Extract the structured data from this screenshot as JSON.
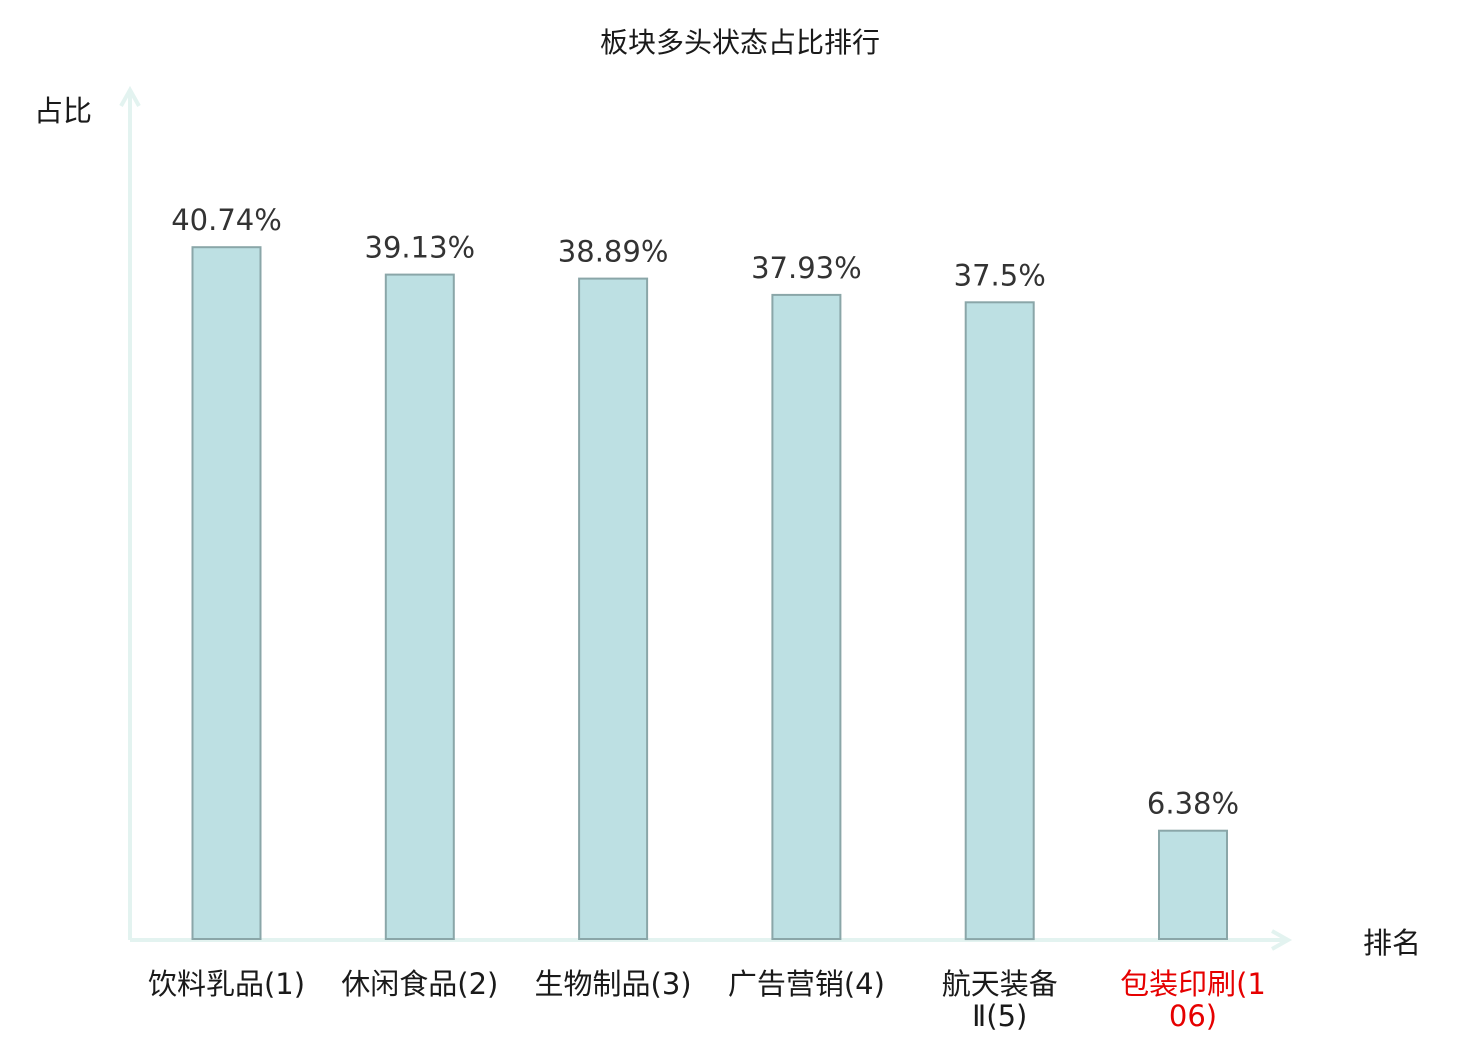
{
  "chart_data": {
    "type": "bar",
    "title": "板块多头状态占比排行",
    "ylabel": "占比",
    "xlabel": "排名",
    "categories": [
      "饮料乳品(1)",
      "休闲食品(2)",
      "生物制品(3)",
      "广告营销(4)",
      "航天装备Ⅱ(5)",
      "包装印刷(106)"
    ],
    "values": [
      40.74,
      39.13,
      38.89,
      37.93,
      37.5,
      6.38
    ],
    "value_labels": [
      "40.74%",
      "39.13%",
      "38.89%",
      "37.93%",
      "37.5%",
      "6.38%"
    ],
    "highlight_index": 5,
    "ylim": [
      0,
      50
    ],
    "grid": false,
    "legend": "none",
    "colors": {
      "bar_fill": "#bde0e3",
      "bar_stroke": "#8aa6a8",
      "axis": "#e3f3f0",
      "text": "#1a1a1a",
      "value_text": "#333333",
      "highlight_text": "#e60000"
    }
  }
}
